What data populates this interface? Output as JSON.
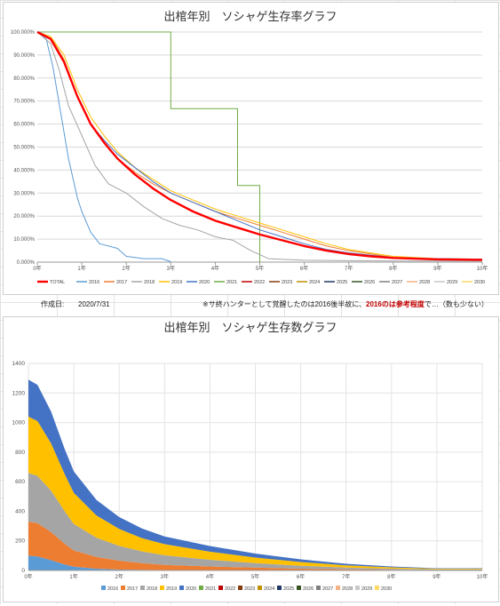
{
  "colors": {
    "2016": "#5b9bd5",
    "2017": "#ed7d31",
    "2018": "#a5a5a5",
    "2019": "#ffc000",
    "2020": "#4472c4",
    "2021": "#70ad47",
    "2022": "#c00000",
    "2023": "#843c0c",
    "2024": "#bf9000",
    "2025": "#1f3864",
    "2026": "#375623",
    "2027": "#7f7f7f",
    "2028": "#f4b183",
    "2029": "#c9c9c9",
    "2030": "#ffd966",
    "TOTAL": "#ff0000"
  },
  "chart_data": [
    {
      "type": "line",
      "title": "出棺年別　ソシャゲ生存率グラフ",
      "xlabel": "",
      "ylabel": "",
      "x_ticks": [
        "0年",
        "1年",
        "2年",
        "3年",
        "4年",
        "5年",
        "6年",
        "7年",
        "8年",
        "9年",
        "10年"
      ],
      "y_ticks": [
        "0.000%",
        "10.000%",
        "20.000%",
        "30.000%",
        "40.000%",
        "50.000%",
        "60.000%",
        "70.000%",
        "80.000%",
        "90.000%",
        "100.000%"
      ],
      "xlim": [
        0,
        10
      ],
      "ylim": [
        0,
        100
      ],
      "legend": "bottom",
      "legend_entries": [
        "TOTAL",
        "2016",
        "2017",
        "2018",
        "2019",
        "2020",
        "2021",
        "2022",
        "2023",
        "2024",
        "2025",
        "2026",
        "2027",
        "2028",
        "2029",
        "2030"
      ],
      "series": [
        {
          "name": "2021",
          "points": [
            [
              0,
              100
            ],
            [
              3,
              100
            ],
            [
              3,
              66.7
            ],
            [
              4.5,
              66.7
            ],
            [
              4.5,
              33.3
            ],
            [
              5,
              33.3
            ],
            [
              5,
              0
            ]
          ]
        },
        {
          "name": "2016",
          "points": [
            [
              0,
              100
            ],
            [
              0.2,
              97
            ],
            [
              0.35,
              85
            ],
            [
              0.5,
              68
            ],
            [
              0.7,
              45
            ],
            [
              0.9,
              28
            ],
            [
              1.0,
              22
            ],
            [
              1.2,
              13
            ],
            [
              1.4,
              8
            ],
            [
              1.8,
              6
            ],
            [
              2.0,
              2.5
            ],
            [
              2.4,
              1.5
            ],
            [
              2.8,
              1.5
            ],
            [
              3.0,
              0.2
            ]
          ]
        },
        {
          "name": "2018",
          "points": [
            [
              0,
              100
            ],
            [
              0.3,
              95
            ],
            [
              0.5,
              83
            ],
            [
              0.7,
              68
            ],
            [
              1.0,
              55
            ],
            [
              1.3,
              42
            ],
            [
              1.6,
              34
            ],
            [
              2.0,
              30
            ],
            [
              2.4,
              24
            ],
            [
              2.8,
              19
            ],
            [
              3.2,
              16
            ],
            [
              3.6,
              14
            ],
            [
              4.0,
              11
            ],
            [
              4.4,
              9.5
            ],
            [
              4.8,
              5
            ],
            [
              5.2,
              1.5
            ],
            [
              6.0,
              0.8
            ],
            [
              8.0,
              0.5
            ],
            [
              10,
              0.5
            ]
          ]
        },
        {
          "name": "2017",
          "points": [
            [
              0,
              100
            ],
            [
              0.3,
              98
            ],
            [
              0.6,
              88
            ],
            [
              0.9,
              72
            ],
            [
              1.2,
              60
            ],
            [
              1.5,
              52
            ],
            [
              1.8,
              45
            ],
            [
              2.2,
              39
            ],
            [
              2.6,
              34
            ],
            [
              3.0,
              30
            ],
            [
              3.5,
              26
            ],
            [
              4.0,
              22
            ],
            [
              4.5,
              19
            ],
            [
              5.0,
              16
            ],
            [
              5.5,
              13
            ],
            [
              6.0,
              10
            ],
            [
              6.5,
              7
            ],
            [
              7.0,
              5
            ],
            [
              7.5,
              3.5
            ],
            [
              8.0,
              2
            ],
            [
              9.0,
              1.5
            ],
            [
              10,
              1.3
            ]
          ]
        },
        {
          "name": "2019",
          "points": [
            [
              0,
              100
            ],
            [
              0.3,
              98
            ],
            [
              0.6,
              90
            ],
            [
              0.9,
              75
            ],
            [
              1.2,
              63
            ],
            [
              1.5,
              55
            ],
            [
              1.8,
              48
            ],
            [
              2.2,
              41
            ],
            [
              2.6,
              36
            ],
            [
              3.0,
              31
            ],
            [
              3.5,
              27
            ],
            [
              4.0,
              23
            ],
            [
              4.5,
              20
            ],
            [
              5.0,
              17
            ],
            [
              5.5,
              14
            ],
            [
              6.0,
              11
            ],
            [
              6.5,
              8
            ],
            [
              7.0,
              5.5
            ],
            [
              7.5,
              4
            ],
            [
              8.0,
              2.5
            ],
            [
              9.0,
              1.5
            ],
            [
              10,
              1.3
            ]
          ]
        },
        {
          "name": "2020",
          "points": [
            [
              0,
              100
            ],
            [
              0.3,
              97
            ],
            [
              0.6,
              87
            ],
            [
              0.9,
              72
            ],
            [
              1.2,
              60
            ],
            [
              1.5,
              53
            ],
            [
              1.8,
              47
            ],
            [
              2.2,
              41
            ],
            [
              2.6,
              35
            ],
            [
              3.0,
              30
            ],
            [
              3.5,
              26
            ],
            [
              4.0,
              22
            ],
            [
              4.5,
              18
            ],
            [
              5.0,
              14
            ],
            [
              5.5,
              11
            ],
            [
              6.0,
              8
            ],
            [
              6.5,
              5.5
            ],
            [
              7.0,
              4
            ],
            [
              7.5,
              3
            ],
            [
              8.0,
              2
            ],
            [
              9.0,
              1.5
            ],
            [
              10,
              1.3
            ]
          ]
        },
        {
          "name": "TOTAL",
          "points": [
            [
              0,
              100
            ],
            [
              0.3,
              97
            ],
            [
              0.6,
              87
            ],
            [
              0.9,
              72
            ],
            [
              1.2,
              60
            ],
            [
              1.5,
              52
            ],
            [
              1.8,
              45
            ],
            [
              2.2,
              38
            ],
            [
              2.6,
              32
            ],
            [
              3.0,
              27
            ],
            [
              3.5,
              22
            ],
            [
              4.0,
              18
            ],
            [
              4.5,
              15
            ],
            [
              5.0,
              12
            ],
            [
              5.5,
              9.5
            ],
            [
              6.0,
              7
            ],
            [
              6.5,
              5
            ],
            [
              7.0,
              3.5
            ],
            [
              7.5,
              2.5
            ],
            [
              8.0,
              1.8
            ],
            [
              9.0,
              1.2
            ],
            [
              10,
              1.0
            ]
          ]
        }
      ]
    },
    {
      "type": "area",
      "stacked": true,
      "title": "出棺年別　ソシャゲ生存数グラフ",
      "xlabel": "",
      "ylabel": "",
      "x_ticks": [
        "0年",
        "1年",
        "2年",
        "3年",
        "4年",
        "5年",
        "6年",
        "7年",
        "8年",
        "9年",
        "10年"
      ],
      "y_ticks": [
        "0",
        "200",
        "400",
        "600",
        "800",
        "1000",
        "1200",
        "1400"
      ],
      "xlim": [
        0,
        10
      ],
      "ylim": [
        0,
        1400
      ],
      "legend": "bottom",
      "legend_entries": [
        "2016",
        "2017",
        "2018",
        "2019",
        "2020",
        "2021",
        "2022",
        "2023",
        "2024",
        "2025",
        "2026",
        "2027",
        "2028",
        "2029",
        "2030"
      ],
      "x": [
        0,
        0.2,
        0.5,
        0.8,
        1,
        1.5,
        2,
        2.5,
        3,
        4,
        5,
        6,
        7,
        8,
        9,
        10
      ],
      "series": [
        {
          "name": "2016",
          "values": [
            100,
            95,
            70,
            40,
            25,
            12,
            6,
            4,
            3,
            2,
            1,
            0,
            0,
            0,
            0,
            0
          ]
        },
        {
          "name": "2017",
          "values": [
            230,
            225,
            190,
            140,
            110,
            80,
            60,
            45,
            35,
            25,
            18,
            12,
            8,
            5,
            3,
            3
          ]
        },
        {
          "name": "2018",
          "values": [
            330,
            320,
            280,
            220,
            180,
            130,
            100,
            80,
            65,
            45,
            30,
            20,
            12,
            7,
            4,
            4
          ]
        },
        {
          "name": "2019",
          "values": [
            380,
            370,
            320,
            250,
            210,
            150,
            115,
            90,
            75,
            55,
            38,
            25,
            15,
            9,
            5,
            5
          ]
        },
        {
          "name": "2020",
          "values": [
            250,
            245,
            215,
            170,
            145,
            105,
            80,
            65,
            52,
            38,
            27,
            18,
            10,
            6,
            3,
            3
          ]
        }
      ],
      "totals_approx": [
        1290,
        1255,
        1075,
        820,
        670,
        477,
        361,
        284,
        230,
        165,
        114,
        75,
        45,
        27,
        15,
        15
      ]
    }
  ],
  "notes": {
    "date_label": "作成日:",
    "date_value": "2020/7/31",
    "note_prefix": "※サ終ハンターとして覚醒したのは2016後半故に、",
    "note_bold": "2016のは参考程度",
    "note_suffix": "で…（数も少ない）"
  }
}
